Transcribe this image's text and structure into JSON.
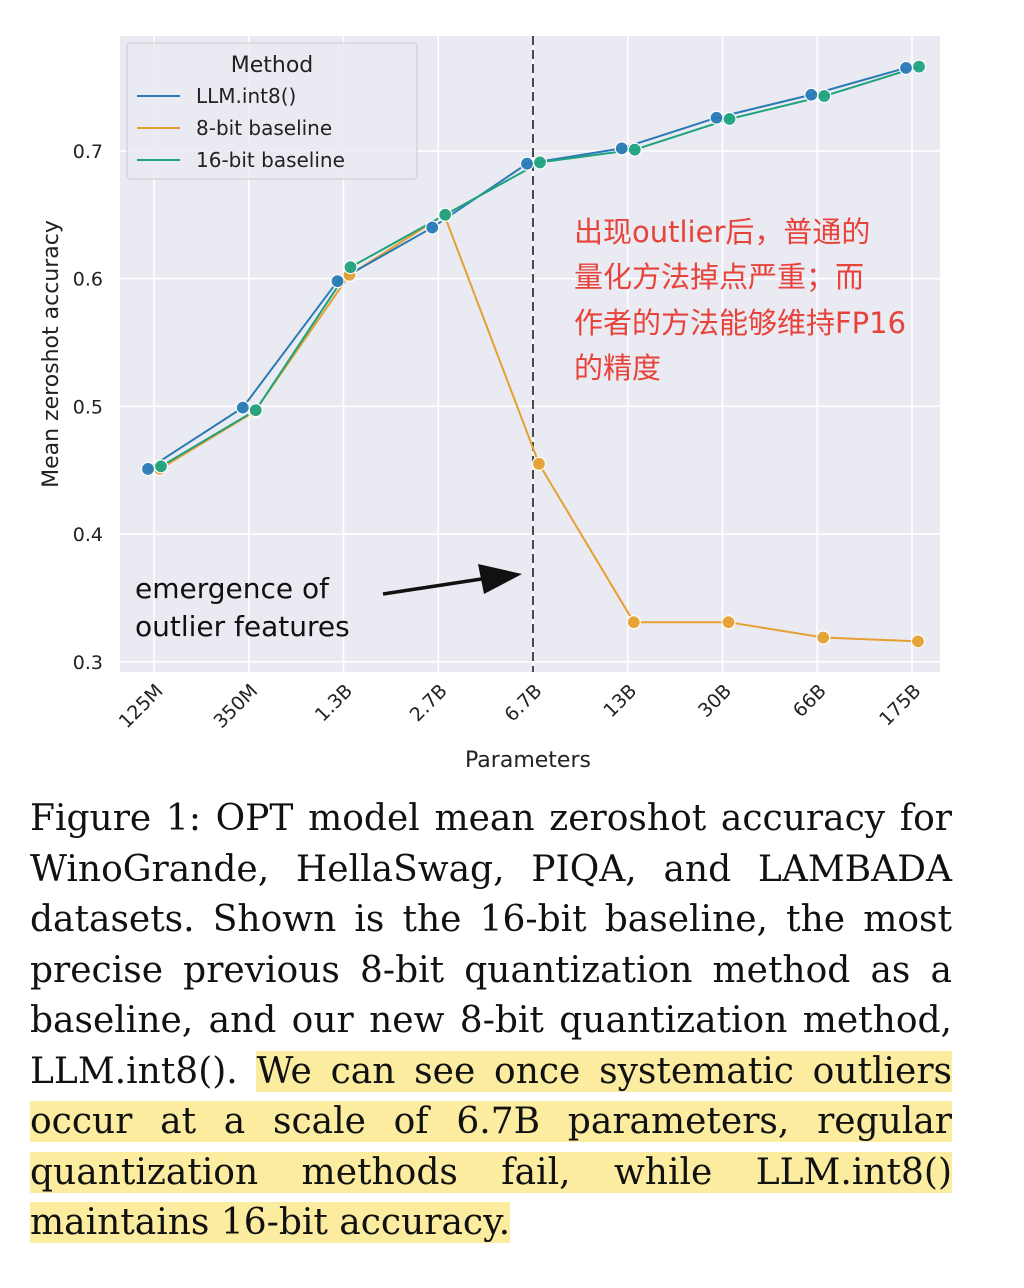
{
  "chart_data": {
    "type": "line",
    "categories": [
      "125M",
      "350M",
      "1.3B",
      "2.7B",
      "6.7B",
      "13B",
      "30B",
      "66B",
      "175B"
    ],
    "series": [
      {
        "name": "LLM.int8()",
        "color": "#2a7bb5",
        "values": [
          0.451,
          0.499,
          0.598,
          0.64,
          0.69,
          0.702,
          0.726,
          0.744,
          0.765
        ]
      },
      {
        "name": "8-bit baseline",
        "color": "#e6a031",
        "values": [
          0.451,
          0.496,
          0.603,
          0.65,
          0.455,
          0.331,
          0.331,
          0.319,
          0.316
        ]
      },
      {
        "name": "16-bit baseline",
        "color": "#1fa37f",
        "values": [
          0.453,
          0.497,
          0.609,
          0.65,
          0.691,
          0.701,
          0.725,
          0.743,
          0.766
        ]
      }
    ],
    "xlabel": "Parameters",
    "ylabel": "Mean zeroshot accuracy",
    "ylim": [
      0.292,
      0.79
    ],
    "yticks": [
      "0.3",
      "0.4",
      "0.5",
      "0.6",
      "0.7"
    ],
    "legend_title": "Method",
    "legend_position": "top-left",
    "grid": true,
    "vline_category": "6.7B",
    "annotations": {
      "arrow_text": [
        "emergence of",
        "outlier features"
      ],
      "note_lines": [
        "出现outlier后，普通的",
        "量化方法掉点严重；而",
        "作者的方法能够维持FP16",
        "的精度"
      ],
      "note_color": "#e8433b"
    }
  },
  "caption": {
    "plain": "Figure 1: OPT model mean zeroshot accuracy for WinoGrande, HellaSwag, PIQA, and LAMBADA datasets. Shown is the 16-bit baseline, the most precise previous 8-bit quantization method as a baseline, and our new 8-bit quantization method, LLM.int8(). ",
    "highlighted": "We can see once systematic outliers occur at a scale of 6.7B parameters, regular quantization methods fail, while LLM.int8() maintains 16-bit accuracy."
  }
}
